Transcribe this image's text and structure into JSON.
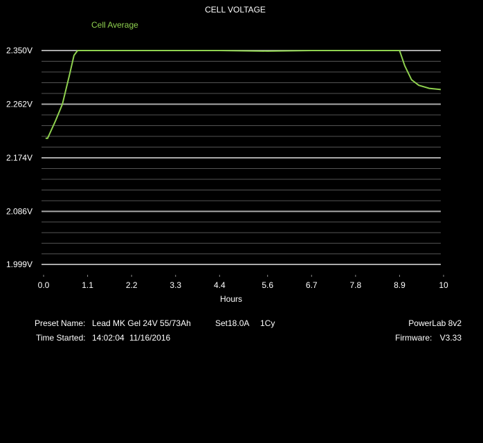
{
  "chart_data": {
    "type": "line",
    "title": "CELL VOLTAGE",
    "xlabel": "Hours",
    "series": [
      {
        "name": "Cell Average",
        "color": "#8fd14f",
        "x": [
          0.05,
          0.1,
          0.3,
          0.47,
          0.64,
          0.76,
          0.85,
          2.0,
          3.3,
          4.4,
          5.6,
          6.7,
          7.8,
          8.9,
          9.03,
          9.2,
          9.38,
          9.64,
          9.93
        ],
        "values": [
          2.206,
          2.206,
          2.235,
          2.262,
          2.308,
          2.342,
          2.35,
          2.35,
          2.35,
          2.35,
          2.349,
          2.35,
          2.35,
          2.35,
          2.325,
          2.302,
          2.293,
          2.288,
          2.286
        ]
      }
    ],
    "xlim": [
      0,
      10
    ],
    "xticks": [
      {
        "value": 0,
        "label": "0.0"
      },
      1.1,
      2.2,
      3.3,
      4.4,
      5.6,
      6.7,
      7.8,
      8.9,
      10
    ],
    "ylim": [
      1.982,
      2.35
    ],
    "yticks": [
      {
        "value": 1.999,
        "label": "1.999V"
      },
      {
        "value": 2.086,
        "label": "2.086V"
      },
      {
        "value": 2.174,
        "label": "2.174V"
      },
      {
        "value": 2.262,
        "label": "2.262V"
      },
      {
        "value": 2.35,
        "label": "2.350V"
      }
    ],
    "grid": true,
    "minor_grid_divisions": 5
  },
  "info": {
    "preset_label": "Preset Name:",
    "preset": "Lead MK Gel 24V 55/73Ah",
    "set": "Set18.0A",
    "cycles": "1Cy",
    "time_label": "Time Started:",
    "time": "14:02:04",
    "date": "11/16/2016",
    "device": "PowerLab 8v2",
    "firmware_label": "Firmware:",
    "firmware": "V3.33"
  }
}
